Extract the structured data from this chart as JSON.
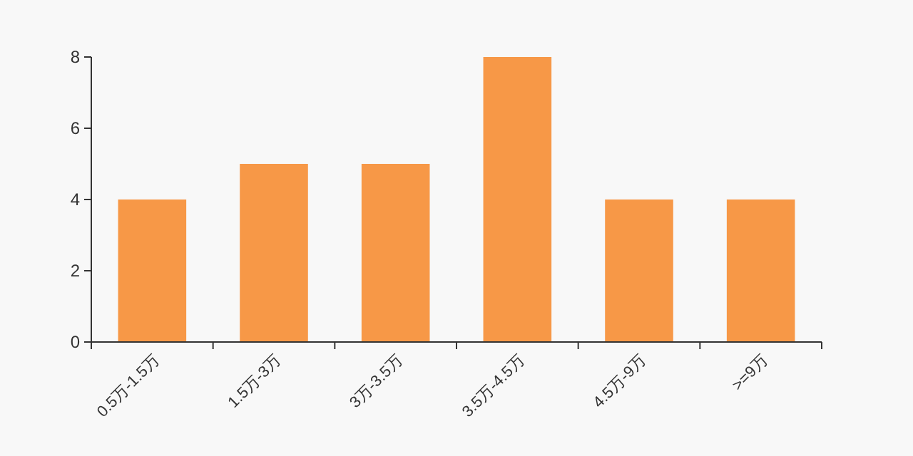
{
  "chart_data": {
    "type": "bar",
    "categories": [
      "0.5万-1.5万",
      "1.5万-3万",
      "3万-3.5万",
      "3.5万-4.5万",
      "4.5万-9万",
      ">=9万"
    ],
    "values": [
      4,
      5,
      5,
      8,
      4,
      4
    ],
    "color": "#f79847",
    "ylim": [
      0,
      8
    ],
    "yticks": [
      0,
      2,
      4,
      6,
      8
    ],
    "grid": false
  }
}
